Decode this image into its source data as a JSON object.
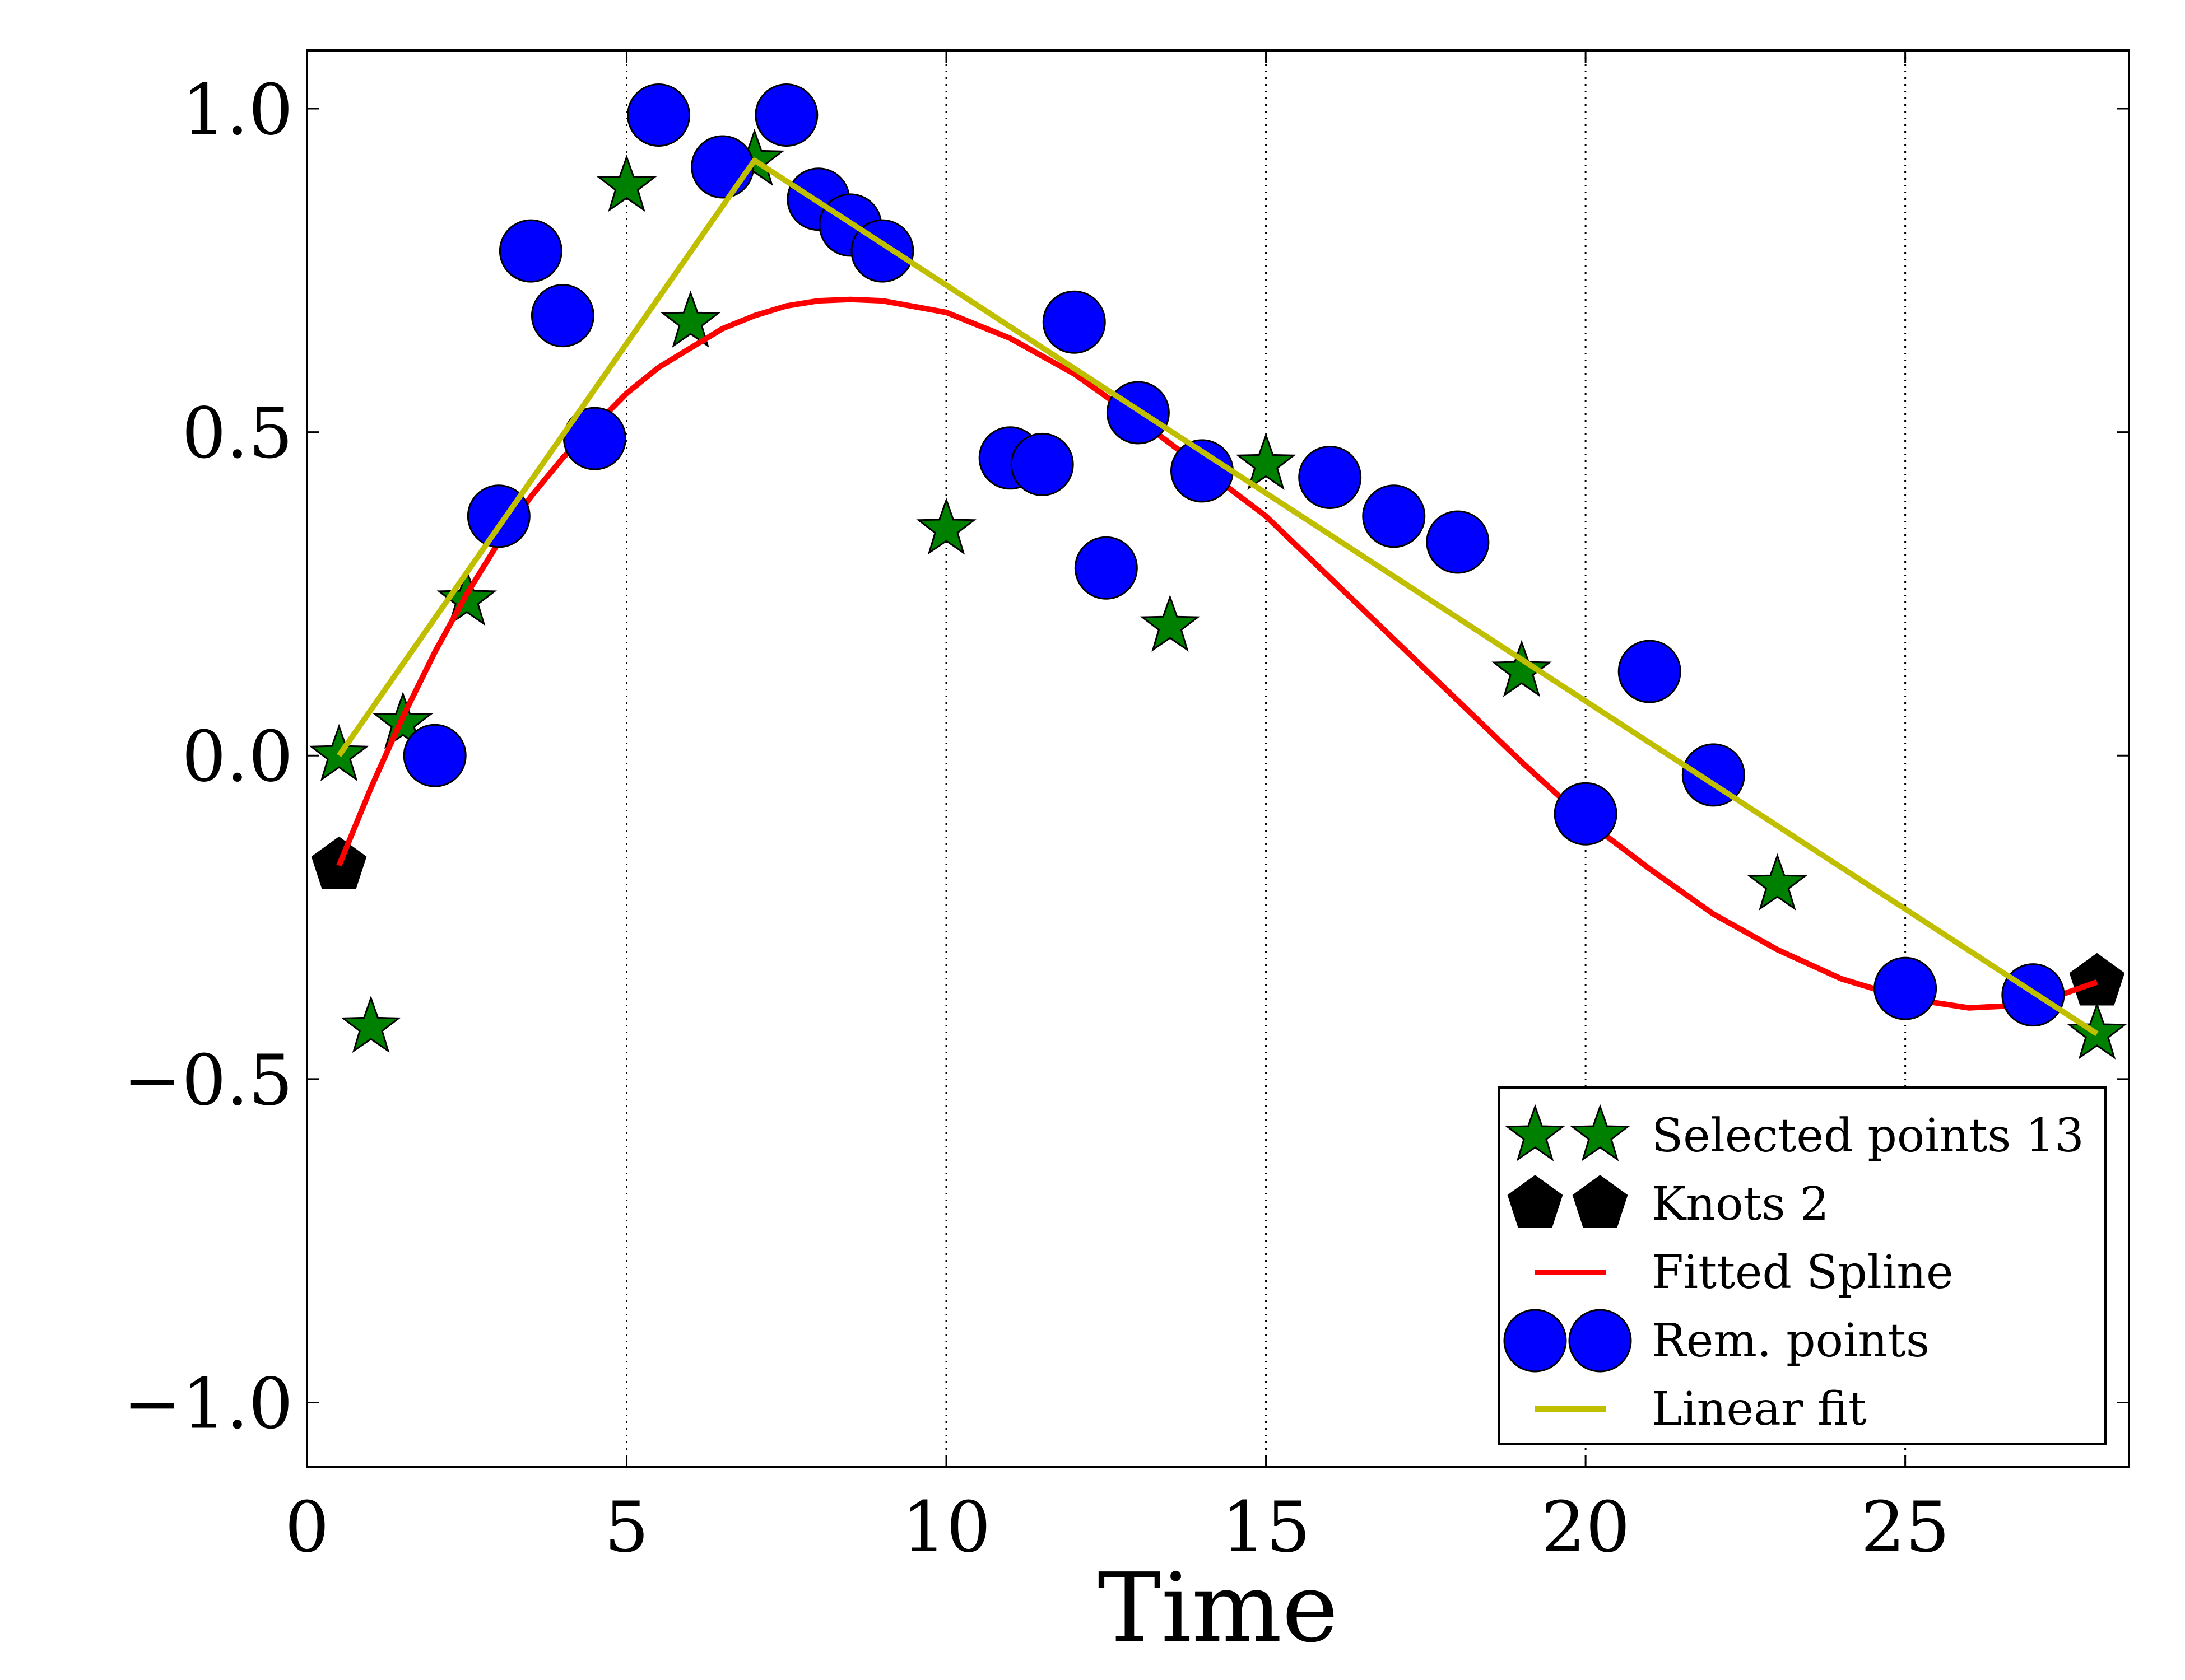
{
  "chart_data": {
    "type": "scatter",
    "title": "",
    "xlabel": "Time",
    "ylabel": "",
    "xlim": [
      0,
      28.5
    ],
    "ylim": [
      -1.1,
      1.09
    ],
    "x_ticks": [
      0,
      5,
      10,
      15,
      20,
      25
    ],
    "x_tick_labels": [
      "0",
      "5",
      "10",
      "15",
      "20",
      "25"
    ],
    "y_ticks": [
      -1.0,
      -0.5,
      0.0,
      0.5,
      1.0
    ],
    "y_tick_labels": [
      "−1.0",
      "−0.5",
      "0.0",
      "0.5",
      "1.0"
    ],
    "grid": "vertical dotted lines at x ticks",
    "legend_position": "lower-right",
    "colors": {
      "selected": "#008000",
      "knots": "#000000",
      "spline": "#ff0000",
      "remaining": "#0000ff",
      "linear": "#bfbf00"
    },
    "series": [
      {
        "name": "Selected points 13",
        "kind": "marker",
        "marker": "star",
        "x": [
          0.5,
          1.0,
          1.5,
          2.5,
          5.0,
          6.0,
          7.0,
          10.0,
          13.5,
          15.0,
          19.0,
          23.0,
          28.0
        ],
        "y": [
          0.0,
          -0.42,
          0.05,
          0.24,
          0.88,
          0.67,
          0.92,
          0.35,
          0.2,
          0.45,
          0.13,
          -0.2,
          -0.43
        ]
      },
      {
        "name": "Knots 2",
        "kind": "marker",
        "marker": "pentagon",
        "x": [
          0.5,
          28.0
        ],
        "y": [
          -0.17,
          -0.35
        ]
      },
      {
        "name": "Fitted Spline",
        "kind": "line",
        "x": [
          0.5,
          1.0,
          1.5,
          2.0,
          2.5,
          3.0,
          3.5,
          4.0,
          4.5,
          5.0,
          5.5,
          6.0,
          6.5,
          7.0,
          7.5,
          8.0,
          8.5,
          9.0,
          10.0,
          11.0,
          12.0,
          13.0,
          14.0,
          15.0,
          16.0,
          17.0,
          18.0,
          19.0,
          20.0,
          21.0,
          22.0,
          23.0,
          24.0,
          25.0,
          26.0,
          27.0,
          28.0
        ],
        "y": [
          -0.17,
          -0.05,
          0.06,
          0.16,
          0.25,
          0.33,
          0.4,
          0.46,
          0.51,
          0.56,
          0.6,
          0.63,
          0.66,
          0.68,
          0.695,
          0.703,
          0.705,
          0.703,
          0.685,
          0.645,
          0.59,
          0.52,
          0.445,
          0.37,
          0.275,
          0.18,
          0.085,
          -0.01,
          -0.1,
          -0.175,
          -0.245,
          -0.3,
          -0.345,
          -0.375,
          -0.39,
          -0.385,
          -0.35
        ]
      },
      {
        "name": "Rem. points",
        "kind": "marker",
        "marker": "circle",
        "x": [
          2.0,
          3.0,
          3.5,
          4.0,
          4.5,
          5.5,
          6.5,
          7.5,
          8.0,
          8.5,
          9.0,
          11.0,
          11.5,
          12.0,
          12.5,
          13.0,
          14.0,
          16.0,
          17.0,
          18.0,
          20.0,
          21.0,
          22.0,
          25.0,
          27.0
        ],
        "y": [
          0.0,
          0.37,
          0.78,
          0.68,
          0.49,
          0.99,
          0.91,
          0.99,
          0.86,
          0.82,
          0.78,
          0.46,
          0.45,
          0.67,
          0.29,
          0.53,
          0.44,
          0.43,
          0.37,
          0.33,
          -0.09,
          0.13,
          -0.03,
          -0.36,
          -0.37
        ]
      },
      {
        "name": "Linear fit",
        "kind": "line",
        "x": [
          0.5,
          7.0,
          28.0
        ],
        "y": [
          0.0,
          0.92,
          -0.43
        ]
      }
    ]
  }
}
